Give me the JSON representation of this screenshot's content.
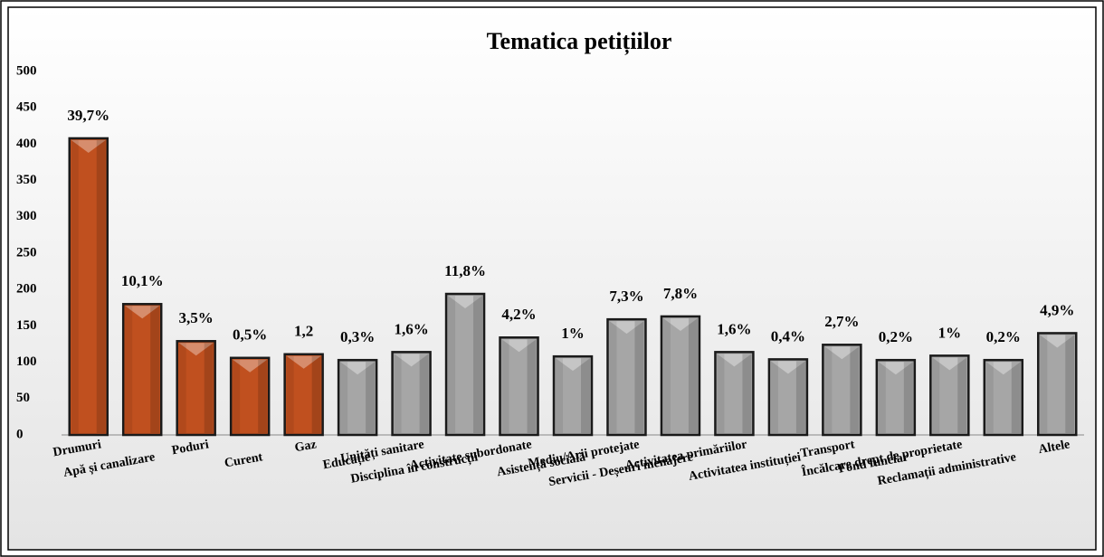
{
  "chart_data": {
    "type": "bar",
    "title": "Tematica petițiilor",
    "categories": [
      "Drumuri",
      "Apă și canalizare",
      "Poduri",
      "Curent",
      "Gaz",
      "Educație",
      "Unități sanitare",
      "Disciplina în construcții",
      "Activitate subordonate",
      "Asistență socială",
      "Mediu/Arii protejate",
      "Servicii - Deșeuri menajere",
      "Activitatea primăriilor",
      "Activitatea instituției",
      "Transport",
      "Fond funciar",
      "Încălcare drept de proprietate",
      "Reclamații administrative",
      "Altele"
    ],
    "values": [
      408,
      180,
      129,
      106,
      111,
      103,
      114,
      194,
      134,
      108,
      159,
      163,
      114,
      104,
      124,
      103,
      109,
      103,
      140
    ],
    "value_labels": [
      "39,7%",
      "10,1%",
      "3,5%",
      "0,5%",
      "1,2",
      "0,3%",
      "1,6%",
      "11,8%",
      "4,2%",
      "1%",
      "7,3%",
      "7,8%",
      "1,6%",
      "0,4%",
      "2,7%",
      "0,2%",
      "1%",
      "0,2%",
      "4,9%"
    ],
    "colors": [
      "#c0501f",
      "#c0501f",
      "#c0501f",
      "#c0501f",
      "#c0501f",
      "#a6a6a6",
      "#a6a6a6",
      "#a6a6a6",
      "#a6a6a6",
      "#a6a6a6",
      "#a6a6a6",
      "#a6a6a6",
      "#a6a6a6",
      "#a6a6a6",
      "#a6a6a6",
      "#a6a6a6",
      "#a6a6a6",
      "#a6a6a6",
      "#a6a6a6"
    ],
    "ylim": [
      0,
      500
    ],
    "yticks": [
      0,
      50,
      100,
      150,
      200,
      250,
      300,
      350,
      400,
      450,
      500
    ],
    "grid": false
  }
}
